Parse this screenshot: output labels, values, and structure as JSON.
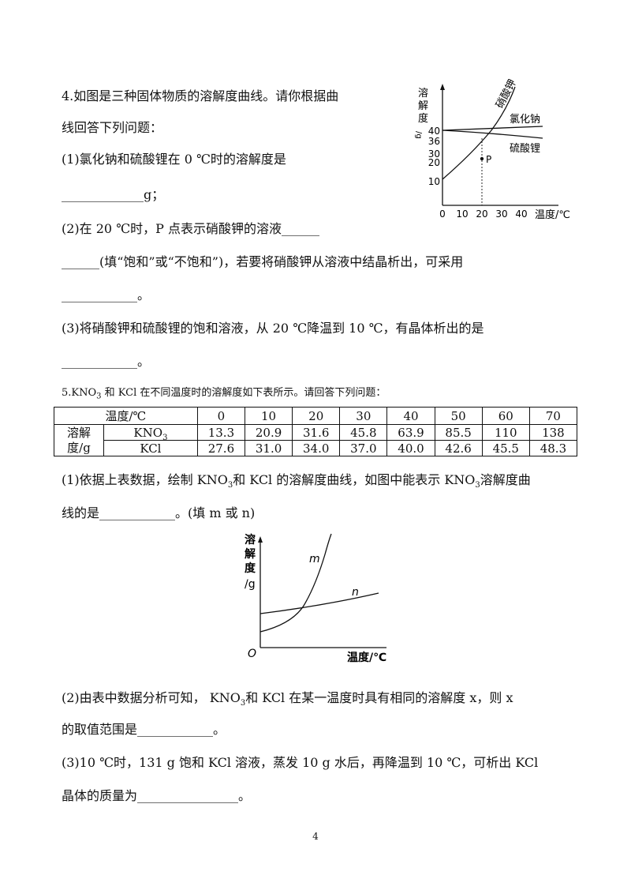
{
  "q4": {
    "line1": "4.如图是三种固体物质的溶解度曲线。请你根据曲",
    "line2": "线回答下列问题：",
    "p1": "(1)氯化钠和硫酸锂在 0 ℃时的溶解度是",
    "p1_blank": "_____________g；",
    "p2": "(2)在 20 ℃时，P 点表示硝酸钾的溶液______",
    "p2b": "______(填“饱和”或“不饱和”)，若要将硝酸钾从溶液中结晶析出，可采用",
    "p2c": "____________。",
    "p3": "(3)将硝酸钾和硫酸锂的饱和溶液，从 20 ℃降温到 10 ℃，有晶体析出的是",
    "p3b": "____________。",
    "graph": {
      "ylabel_chars": [
        "溶",
        "解",
        "度"
      ],
      "yunit": "/g",
      "yticks": [
        "40",
        "36",
        "30",
        "20",
        "10"
      ],
      "xticks": [
        "0",
        "10",
        "20",
        "30",
        "40"
      ],
      "xlabel": "温度/℃",
      "label_kno3": "硝酸钾",
      "label_nacl": "氯化钠",
      "label_li2so4": "硫酸锂",
      "point": "P"
    }
  },
  "q5": {
    "intro_a": "5.KNO",
    "intro_sub": "3",
    "intro_b": " 和 KCl 在不同温度时的溶解度如下表所示。请回答下列问题：",
    "table": {
      "temp_header": "温度/℃",
      "temps": [
        "0",
        "10",
        "20",
        "30",
        "40",
        "50",
        "60",
        "70"
      ],
      "row_header": "溶解度/g",
      "row_header_line1": "溶解",
      "row_header_line2": "度/g",
      "kno3_label": "KNO",
      "kno3_sub": "3",
      "kno3": [
        "13.3",
        "20.9",
        "31.6",
        "45.8",
        "63.9",
        "85.5",
        "110",
        "138"
      ],
      "kcl_label": "KCl",
      "kcl": [
        "27.6",
        "31.0",
        "34.0",
        "37.0",
        "40.0",
        "42.6",
        "45.5",
        "48.3"
      ]
    },
    "p1a": "(1)依据上表数据，绘制 KNO",
    "p1sub": "3",
    "p1b": "和 KCl 的溶解度曲线，如图中能表示 KNO",
    "p1sub2": "3",
    "p1c": "溶解度曲",
    "p1line2": "线的是____________。(填 m 或 n)",
    "graph": {
      "ylabel_chars": [
        "溶",
        "解",
        "度"
      ],
      "yunit": "/g",
      "origin": "O",
      "xlabel": "温度/℃",
      "m": "m",
      "n": "n"
    },
    "p2a": "(2)由表中数据分析可知， KNO",
    "p2sub": "3",
    "p2b": "和 KCl 在某一温度时具有相同的溶解度 x，则 x",
    "p2line2": "的取值范围是____________。",
    "p3": "(3)10 ℃时，131 g 饱和 KCl 溶液，蒸发 10 g 水后，再降温到 10 ℃，可析出 KCl",
    "p3line2": "晶体的质量为________________。"
  },
  "page_number": "4"
}
